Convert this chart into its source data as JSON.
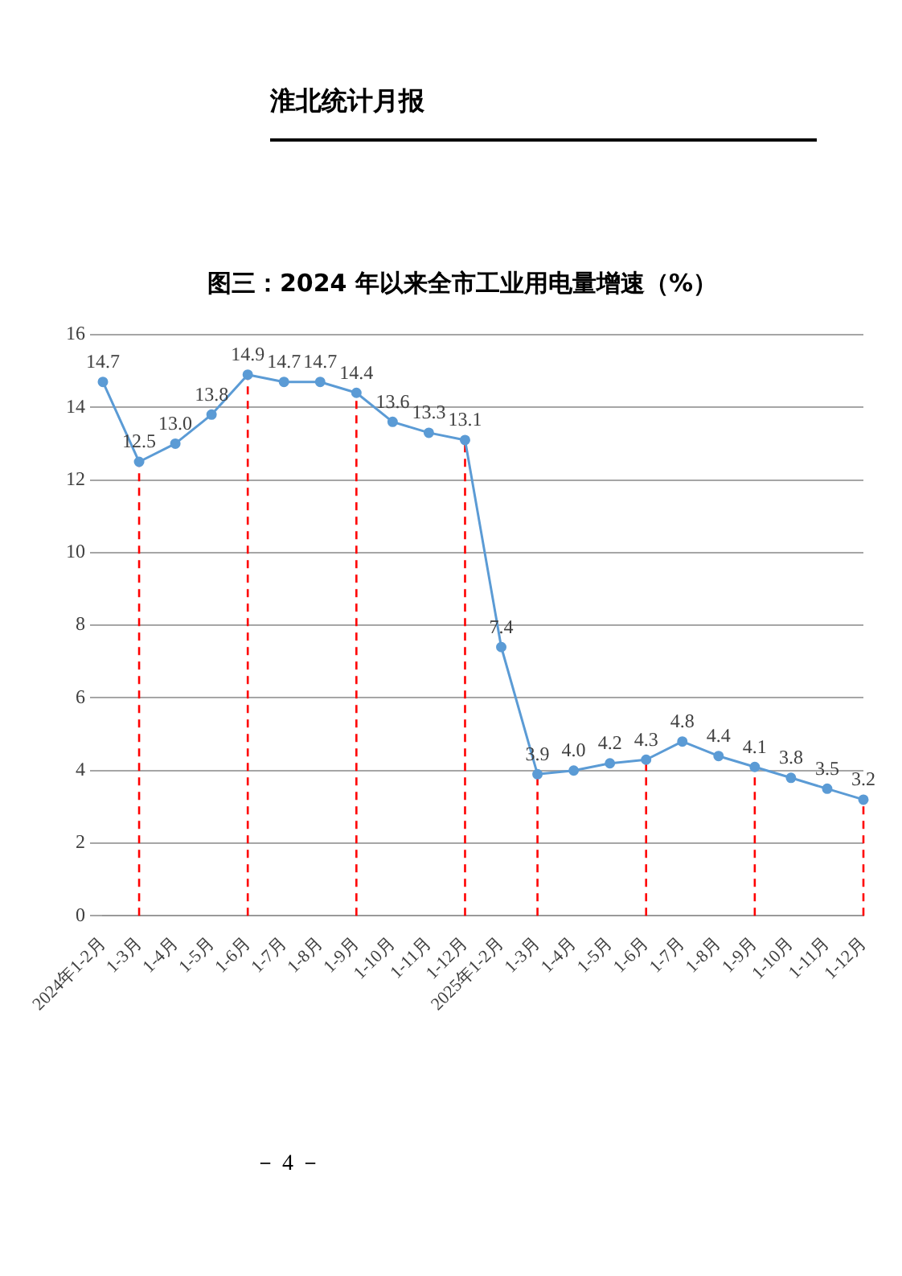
{
  "chart_data": {
    "type": "line",
    "title": "图三：2024 年以来全市工业用电量增速（%）",
    "annotations": [
      "淮北统计月报",
      "－ 4 －"
    ],
    "categories": [
      "2024年1-2月",
      "1-3月",
      "1-4月",
      "1-5月",
      "1-6月",
      "1-7月",
      "1-8月",
      "1-9月",
      "1-10月",
      "1-11月",
      "1-12月",
      "2025年1-2月",
      "1-3月",
      "1-4月",
      "1-5月",
      "1-6月",
      "1-7月",
      "1-8月",
      "1-9月",
      "1-10月",
      "1-11月",
      "1-12月"
    ],
    "series": [
      {
        "color": "#5b9bd5",
        "values": [
          14.7,
          12.5,
          13.0,
          13.8,
          14.9,
          14.7,
          14.7,
          14.4,
          13.6,
          13.3,
          13.1,
          7.4,
          3.9,
          4.0,
          4.2,
          4.3,
          4.8,
          4.4,
          4.1,
          3.8,
          3.5,
          3.2
        ],
        "value_labels": [
          "14.7",
          "12.5",
          "13.0",
          "13.8",
          "14.9",
          "14.7",
          "14.7",
          "14.4",
          "13.6",
          "13.3",
          "13.1",
          "7.4",
          "3.9",
          "4.0",
          "4.2",
          "4.3",
          "4.8",
          "4.4",
          "4.1",
          "3.8",
          "3.5",
          "3.2"
        ]
      }
    ],
    "ylim": [
      0,
      16
    ],
    "yticks": [
      0,
      2,
      4,
      6,
      8,
      10,
      12,
      14,
      16
    ],
    "grid": "y",
    "legend": false,
    "marker": "circle",
    "line_style": "solid",
    "ref_lines": [
      {
        "axis": "x",
        "value": "1-3月",
        "color": "#ff0000",
        "line_style": "dashed"
      },
      {
        "axis": "x",
        "value": "1-6月",
        "color": "#ff0000",
        "line_style": "dashed"
      },
      {
        "axis": "x",
        "value": "1-9月",
        "color": "#ff0000",
        "line_style": "dashed"
      },
      {
        "axis": "x",
        "value": "1-12月",
        "color": "#ff0000",
        "line_style": "dashed"
      }
    ]
  }
}
